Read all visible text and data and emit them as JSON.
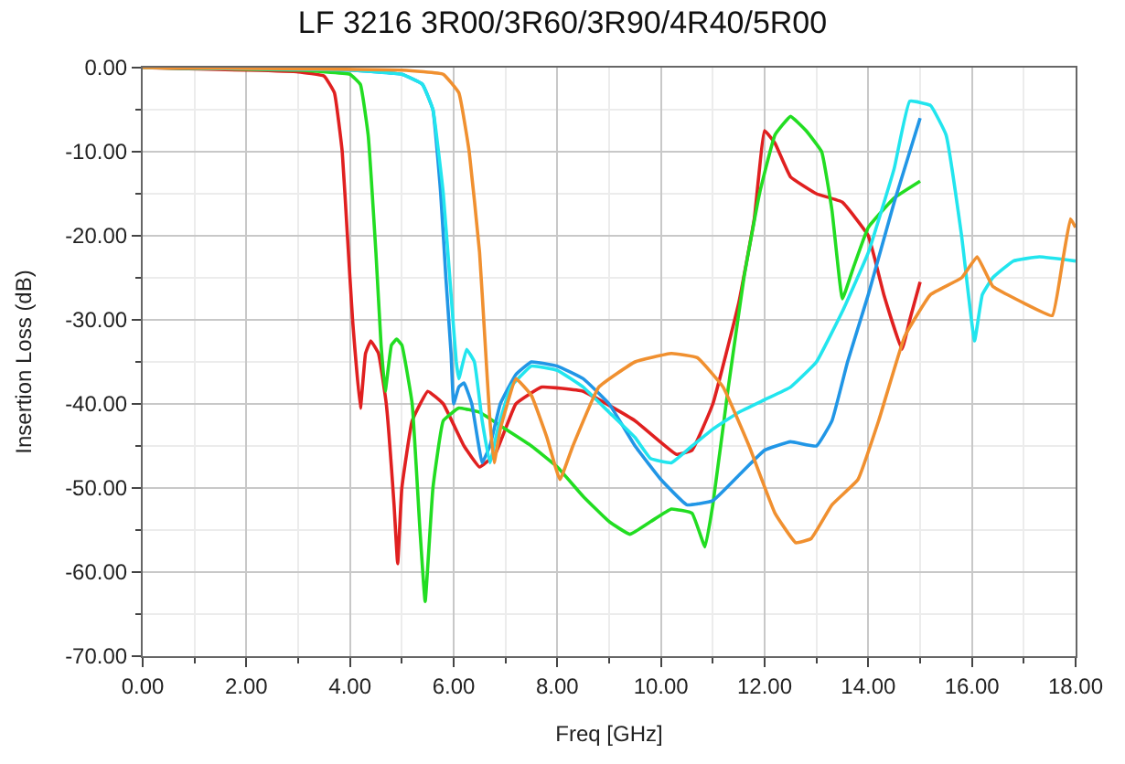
{
  "chart_data": {
    "type": "line",
    "title": "LF 3216 3R00/3R60/3R90/4R40/5R00",
    "xlabel": "Freq [GHz]",
    "ylabel": "Insertion Loss (dB)",
    "xlim": [
      0,
      18
    ],
    "ylim": [
      -70,
      0
    ],
    "xticks": [
      {
        "value": 0,
        "label": "0.00"
      },
      {
        "value": 2,
        "label": "2.00"
      },
      {
        "value": 4,
        "label": "4.00"
      },
      {
        "value": 6,
        "label": "6.00"
      },
      {
        "value": 8,
        "label": "8.00"
      },
      {
        "value": 10,
        "label": "10.00"
      },
      {
        "value": 12,
        "label": "12.00"
      },
      {
        "value": 14,
        "label": "14.00"
      },
      {
        "value": 16,
        "label": "16.00"
      },
      {
        "value": 18,
        "label": "18.00"
      }
    ],
    "yticks": [
      {
        "value": 0,
        "label": "0.00"
      },
      {
        "value": -10,
        "label": "-10.00"
      },
      {
        "value": -20,
        "label": "-20.00"
      },
      {
        "value": -30,
        "label": "-30.00"
      },
      {
        "value": -40,
        "label": "-40.00"
      },
      {
        "value": -50,
        "label": "-50.00"
      },
      {
        "value": -60,
        "label": "-60.00"
      },
      {
        "value": -70,
        "label": "-70.00"
      }
    ],
    "grid": true,
    "marker": "none",
    "line_style": "solid",
    "series": [
      {
        "color": "#e02020",
        "x": [
          0,
          2,
          3,
          3.5,
          3.7,
          3.85,
          3.95,
          4.05,
          4.2,
          4.3,
          4.4,
          4.55,
          4.7,
          4.85,
          4.92,
          5.0,
          5.2,
          5.5,
          5.8,
          6.2,
          6.5,
          6.8,
          7.2,
          7.7,
          8.5,
          9.5,
          10.3,
          10.6,
          11.0,
          11.5,
          11.8,
          12.0,
          12.2,
          12.5,
          13.0,
          13.5,
          14.0,
          14.3,
          14.65,
          14.8,
          15.0
        ],
        "values": [
          0,
          -0.3,
          -0.5,
          -1,
          -3,
          -10,
          -20,
          -30,
          -40.5,
          -34,
          -32.5,
          -34,
          -40,
          -52,
          -59,
          -50,
          -42,
          -38.5,
          -40,
          -45,
          -47.5,
          -46,
          -40,
          -38,
          -38.5,
          -42,
          -46,
          -45.5,
          -40,
          -28,
          -18,
          -7.5,
          -9,
          -13,
          -15,
          -16,
          -20,
          -27,
          -33.5,
          -30,
          -25.5
        ]
      },
      {
        "color": "#22dd22",
        "x": [
          0,
          3,
          4.0,
          4.2,
          4.35,
          4.5,
          4.6,
          4.68,
          4.8,
          4.9,
          5.0,
          5.2,
          5.35,
          5.45,
          5.6,
          5.8,
          6.1,
          6.5,
          7.0,
          7.5,
          8.0,
          8.5,
          9.0,
          9.4,
          9.8,
          10.2,
          10.6,
          10.85,
          11.0,
          11.3,
          11.6,
          11.9,
          12.2,
          12.5,
          12.8,
          13.1,
          13.3,
          13.5,
          13.7,
          14.0,
          14.5,
          15.0
        ],
        "values": [
          0,
          -0.3,
          -0.8,
          -2,
          -8,
          -22,
          -33,
          -38.5,
          -33,
          -32.3,
          -33,
          -40,
          -55,
          -63.5,
          -50,
          -42,
          -40.5,
          -41,
          -43,
          -45,
          -47.5,
          -51,
          -54,
          -55.5,
          -54,
          -52.5,
          -53,
          -57,
          -52,
          -38,
          -25,
          -15,
          -8,
          -5.8,
          -7.5,
          -10,
          -17,
          -27.5,
          -24,
          -19,
          -15.5,
          -13.5
        ]
      },
      {
        "color": "#2196e6",
        "x": [
          0,
          4,
          5.0,
          5.4,
          5.6,
          5.75,
          5.85,
          5.95,
          6.0,
          6.1,
          6.2,
          6.35,
          6.55,
          6.7,
          6.9,
          7.2,
          7.5,
          8,
          8.5,
          9,
          9.5,
          10,
          10.5,
          11,
          11.5,
          12,
          12.5,
          13,
          13.3,
          13.6,
          14,
          14.5,
          15.0
        ],
        "values": [
          0,
          -0.3,
          -0.8,
          -2,
          -5,
          -15,
          -25,
          -34,
          -40,
          -38,
          -37.5,
          -40,
          -47,
          -45,
          -40,
          -36.5,
          -35,
          -35.5,
          -37,
          -40,
          -45,
          -49,
          -52,
          -51.5,
          -48.5,
          -45.5,
          -44.5,
          -45,
          -42,
          -35,
          -27,
          -16,
          -6
        ]
      },
      {
        "color": "#22e5ee",
        "x": [
          0,
          4,
          5.0,
          5.4,
          5.6,
          5.8,
          5.95,
          6.05,
          6.1,
          6.25,
          6.4,
          6.55,
          6.7,
          6.85,
          7.1,
          7.5,
          8,
          8.5,
          9,
          9.5,
          9.8,
          10.2,
          10.6,
          11,
          11.5,
          12,
          12.5,
          13,
          13.5,
          14,
          14.5,
          14.8,
          15.2,
          15.5,
          15.8,
          16.05,
          16.2,
          16.4,
          16.8,
          17.3,
          18
        ],
        "values": [
          0,
          -0.3,
          -0.8,
          -2,
          -5,
          -15,
          -27,
          -35,
          -37,
          -33.5,
          -35,
          -42,
          -47,
          -43,
          -38,
          -35.5,
          -36,
          -38,
          -41,
          -44,
          -46.5,
          -47,
          -45,
          -43,
          -41,
          -39.5,
          -38,
          -35,
          -29,
          -22,
          -12,
          -4,
          -4.5,
          -8,
          -20,
          -32.5,
          -27,
          -25,
          -23,
          -22.5,
          -23
        ]
      },
      {
        "color": "#f09030",
        "x": [
          0,
          5,
          5.8,
          6.1,
          6.3,
          6.5,
          6.6,
          6.7,
          6.78,
          6.9,
          7.2,
          7.5,
          7.8,
          8.05,
          8.3,
          8.8,
          9.5,
          10.2,
          10.7,
          11.2,
          11.7,
          12.2,
          12.6,
          12.9,
          13.3,
          13.8,
          14.2,
          14.7,
          15.2,
          15.8,
          16.1,
          16.4,
          17,
          17.55,
          17.75,
          17.9,
          18
        ],
        "values": [
          0,
          -0.3,
          -0.8,
          -3,
          -10,
          -22,
          -32,
          -42,
          -47,
          -43,
          -37,
          -39,
          -44,
          -49,
          -45,
          -38,
          -35,
          -34,
          -34.5,
          -38,
          -45,
          -53,
          -56.5,
          -56,
          -52,
          -49,
          -42,
          -32,
          -27,
          -25,
          -22.5,
          -26,
          -28,
          -29.5,
          -23,
          -18,
          -19
        ]
      }
    ]
  }
}
